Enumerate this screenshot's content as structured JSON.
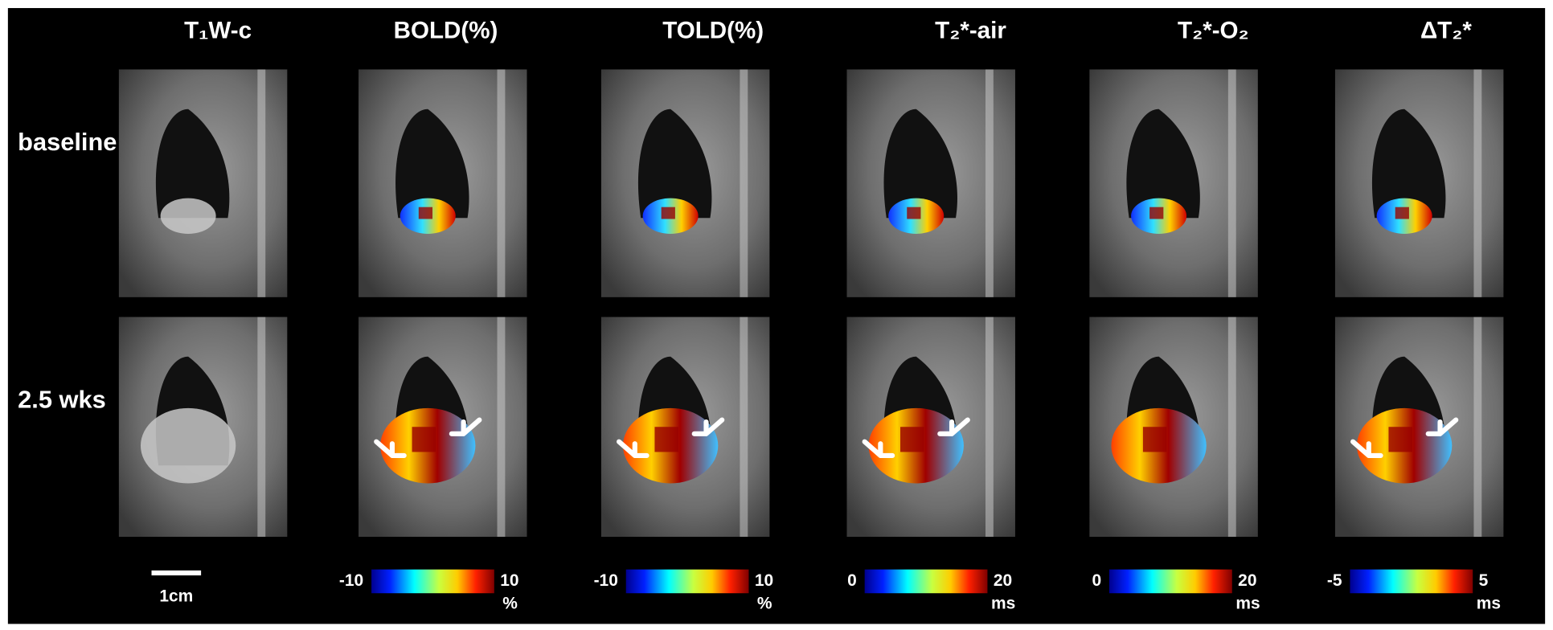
{
  "columns": [
    {
      "header": "T₁W-c"
    },
    {
      "header": "BOLD(%)",
      "colorbar": {
        "min": -10,
        "max": 10,
        "unit": "%"
      }
    },
    {
      "header": "TOLD(%)",
      "colorbar": {
        "min": -10,
        "max": 10,
        "unit": "%"
      }
    },
    {
      "header": "T₂*-air",
      "colorbar": {
        "min": 0,
        "max": 20,
        "unit": "ms"
      }
    },
    {
      "header": "T₂*-O₂",
      "colorbar": {
        "min": 0,
        "max": 20,
        "unit": "ms"
      }
    },
    {
      "header": "ΔT₂*",
      "colorbar": {
        "min": -5,
        "max": 5,
        "unit": "ms"
      }
    }
  ],
  "rows": [
    "baseline",
    "2.5 wks"
  ],
  "scale_bar": "1cm"
}
